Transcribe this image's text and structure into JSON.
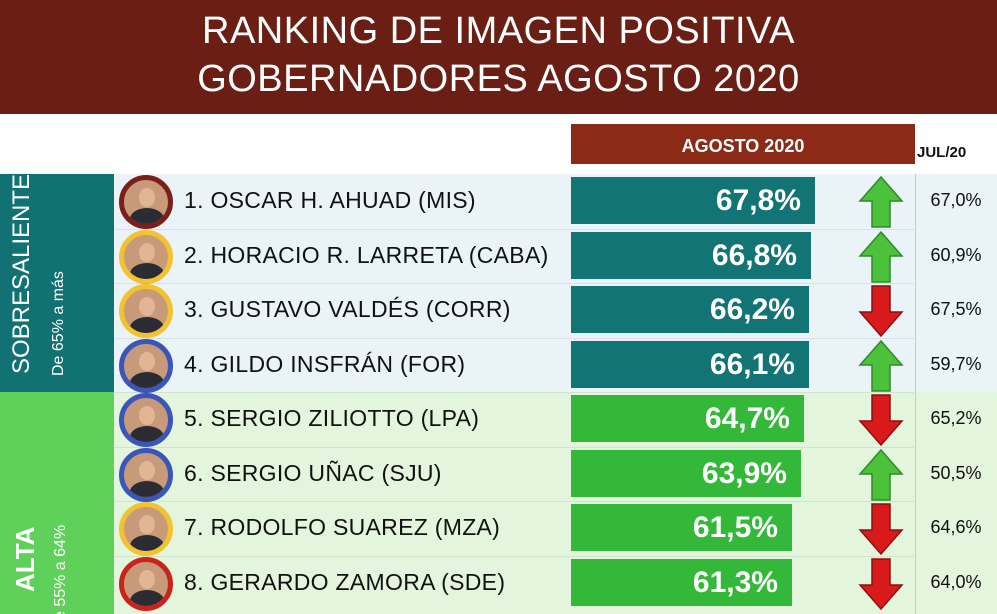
{
  "header": {
    "title_line1": "RANKING DE IMAGEN POSITIVA",
    "title_line2": "GOBERNADORES AGOSTO 2020"
  },
  "columns": {
    "current": "AGOSTO 2020",
    "previous": "JUL/20"
  },
  "categories": [
    {
      "label": "SOBRESALIENTE",
      "range": "De 65% a más",
      "color": "#127273"
    },
    {
      "label": "ALTA",
      "range": "e 55% a 64%",
      "color": "#5fd05a"
    }
  ],
  "colors": {
    "teal_bar": "#127474",
    "green_bar": "#34b83a",
    "up": "#4cc23c",
    "down": "#d81a1a",
    "header": "#6b1f14"
  },
  "chart_data": {
    "type": "bar",
    "title": "RANKING DE IMAGEN POSITIVA GOBERNADORES AGOSTO 2020",
    "orientation": "horizontal",
    "categories": [
      "1. OSCAR H. AHUAD  (MIS)",
      "2. HORACIO R. LARRETA (CABA)",
      "3. GUSTAVO VALDÉS  (CORR)",
      "4. GILDO INSFRÁN (FOR)",
      "5. SERGIO ZILIOTTO (LPA)",
      "6. SERGIO UÑAC (SJU)",
      "7. RODOLFO SUAREZ (MZA)",
      "8. GERARDO ZAMORA (SDE)"
    ],
    "series": [
      {
        "name": "AGOSTO 2020",
        "values": [
          67.8,
          66.8,
          66.2,
          66.1,
          64.7,
          63.9,
          61.5,
          61.3
        ]
      },
      {
        "name": "JUL/20",
        "values": [
          67.0,
          60.9,
          67.5,
          59.7,
          65.2,
          50.5,
          64.6,
          64.0
        ]
      }
    ],
    "value_labels": [
      "67,8%",
      "66,8%",
      "66,2%",
      "66,1%",
      "64,7%",
      "63,9%",
      "61,5%",
      "61,3%"
    ],
    "previous_labels": [
      "67,0%",
      "60,9%",
      "67,5%",
      "59,7%",
      "65,2%",
      "50,5%",
      "64,6%",
      "64,0%"
    ],
    "trend": [
      "up",
      "up",
      "down",
      "up",
      "down",
      "up",
      "down",
      "down"
    ],
    "group": [
      "teal",
      "teal",
      "teal",
      "teal",
      "green",
      "green",
      "green",
      "green"
    ],
    "xlim": [
      0,
      100
    ]
  }
}
